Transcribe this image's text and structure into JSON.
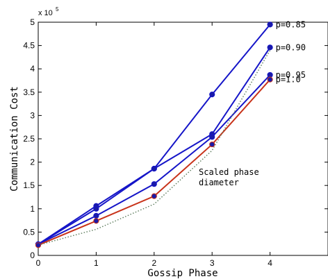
{
  "chart_data": {
    "type": "line",
    "xlabel": "Gossip Phase",
    "ylabel": "Communication Cost",
    "xlim": [
      0,
      5
    ],
    "ylim": [
      0,
      500000
    ],
    "x_ticks": [
      0,
      1,
      2,
      3,
      4
    ],
    "y_ticks": [
      0,
      50000,
      100000,
      150000,
      200000,
      250000,
      300000,
      350000,
      400000,
      450000,
      500000
    ],
    "y_tick_labels": [
      "0",
      "0.5",
      "1",
      "1.5",
      "2",
      "2.5",
      "3",
      "3.5",
      "4",
      "4.5",
      "5"
    ],
    "y_multiplier_text": "x 10",
    "y_multiplier_exp": "5",
    "grid": false,
    "x": [
      0,
      1,
      2,
      3,
      4
    ],
    "series": [
      {
        "name": "p=0.85",
        "values": [
          24000,
          106000,
          186000,
          345000,
          495000
        ],
        "color": "#1515c8",
        "style": "solid"
      },
      {
        "name": "p=0.90",
        "values": [
          24000,
          100000,
          186000,
          260000,
          446000
        ],
        "color": "#1515c8",
        "style": "solid"
      },
      {
        "name": "p=0.95",
        "values": [
          24000,
          85000,
          153000,
          254000,
          387000
        ],
        "color": "#1515c8",
        "style": "solid"
      },
      {
        "name": "p=1.0",
        "values": [
          22000,
          74000,
          127000,
          238000,
          377000
        ],
        "color": "#c8331a",
        "style": "solid"
      },
      {
        "name": "",
        "values": [
          22000,
          56000,
          110000,
          225000,
          440000
        ],
        "color": "#5a7a5a",
        "style": "dotted"
      }
    ],
    "annotation": [
      "Scaled phase",
      "diameter"
    ],
    "marker_color": "#1a1aa8"
  }
}
